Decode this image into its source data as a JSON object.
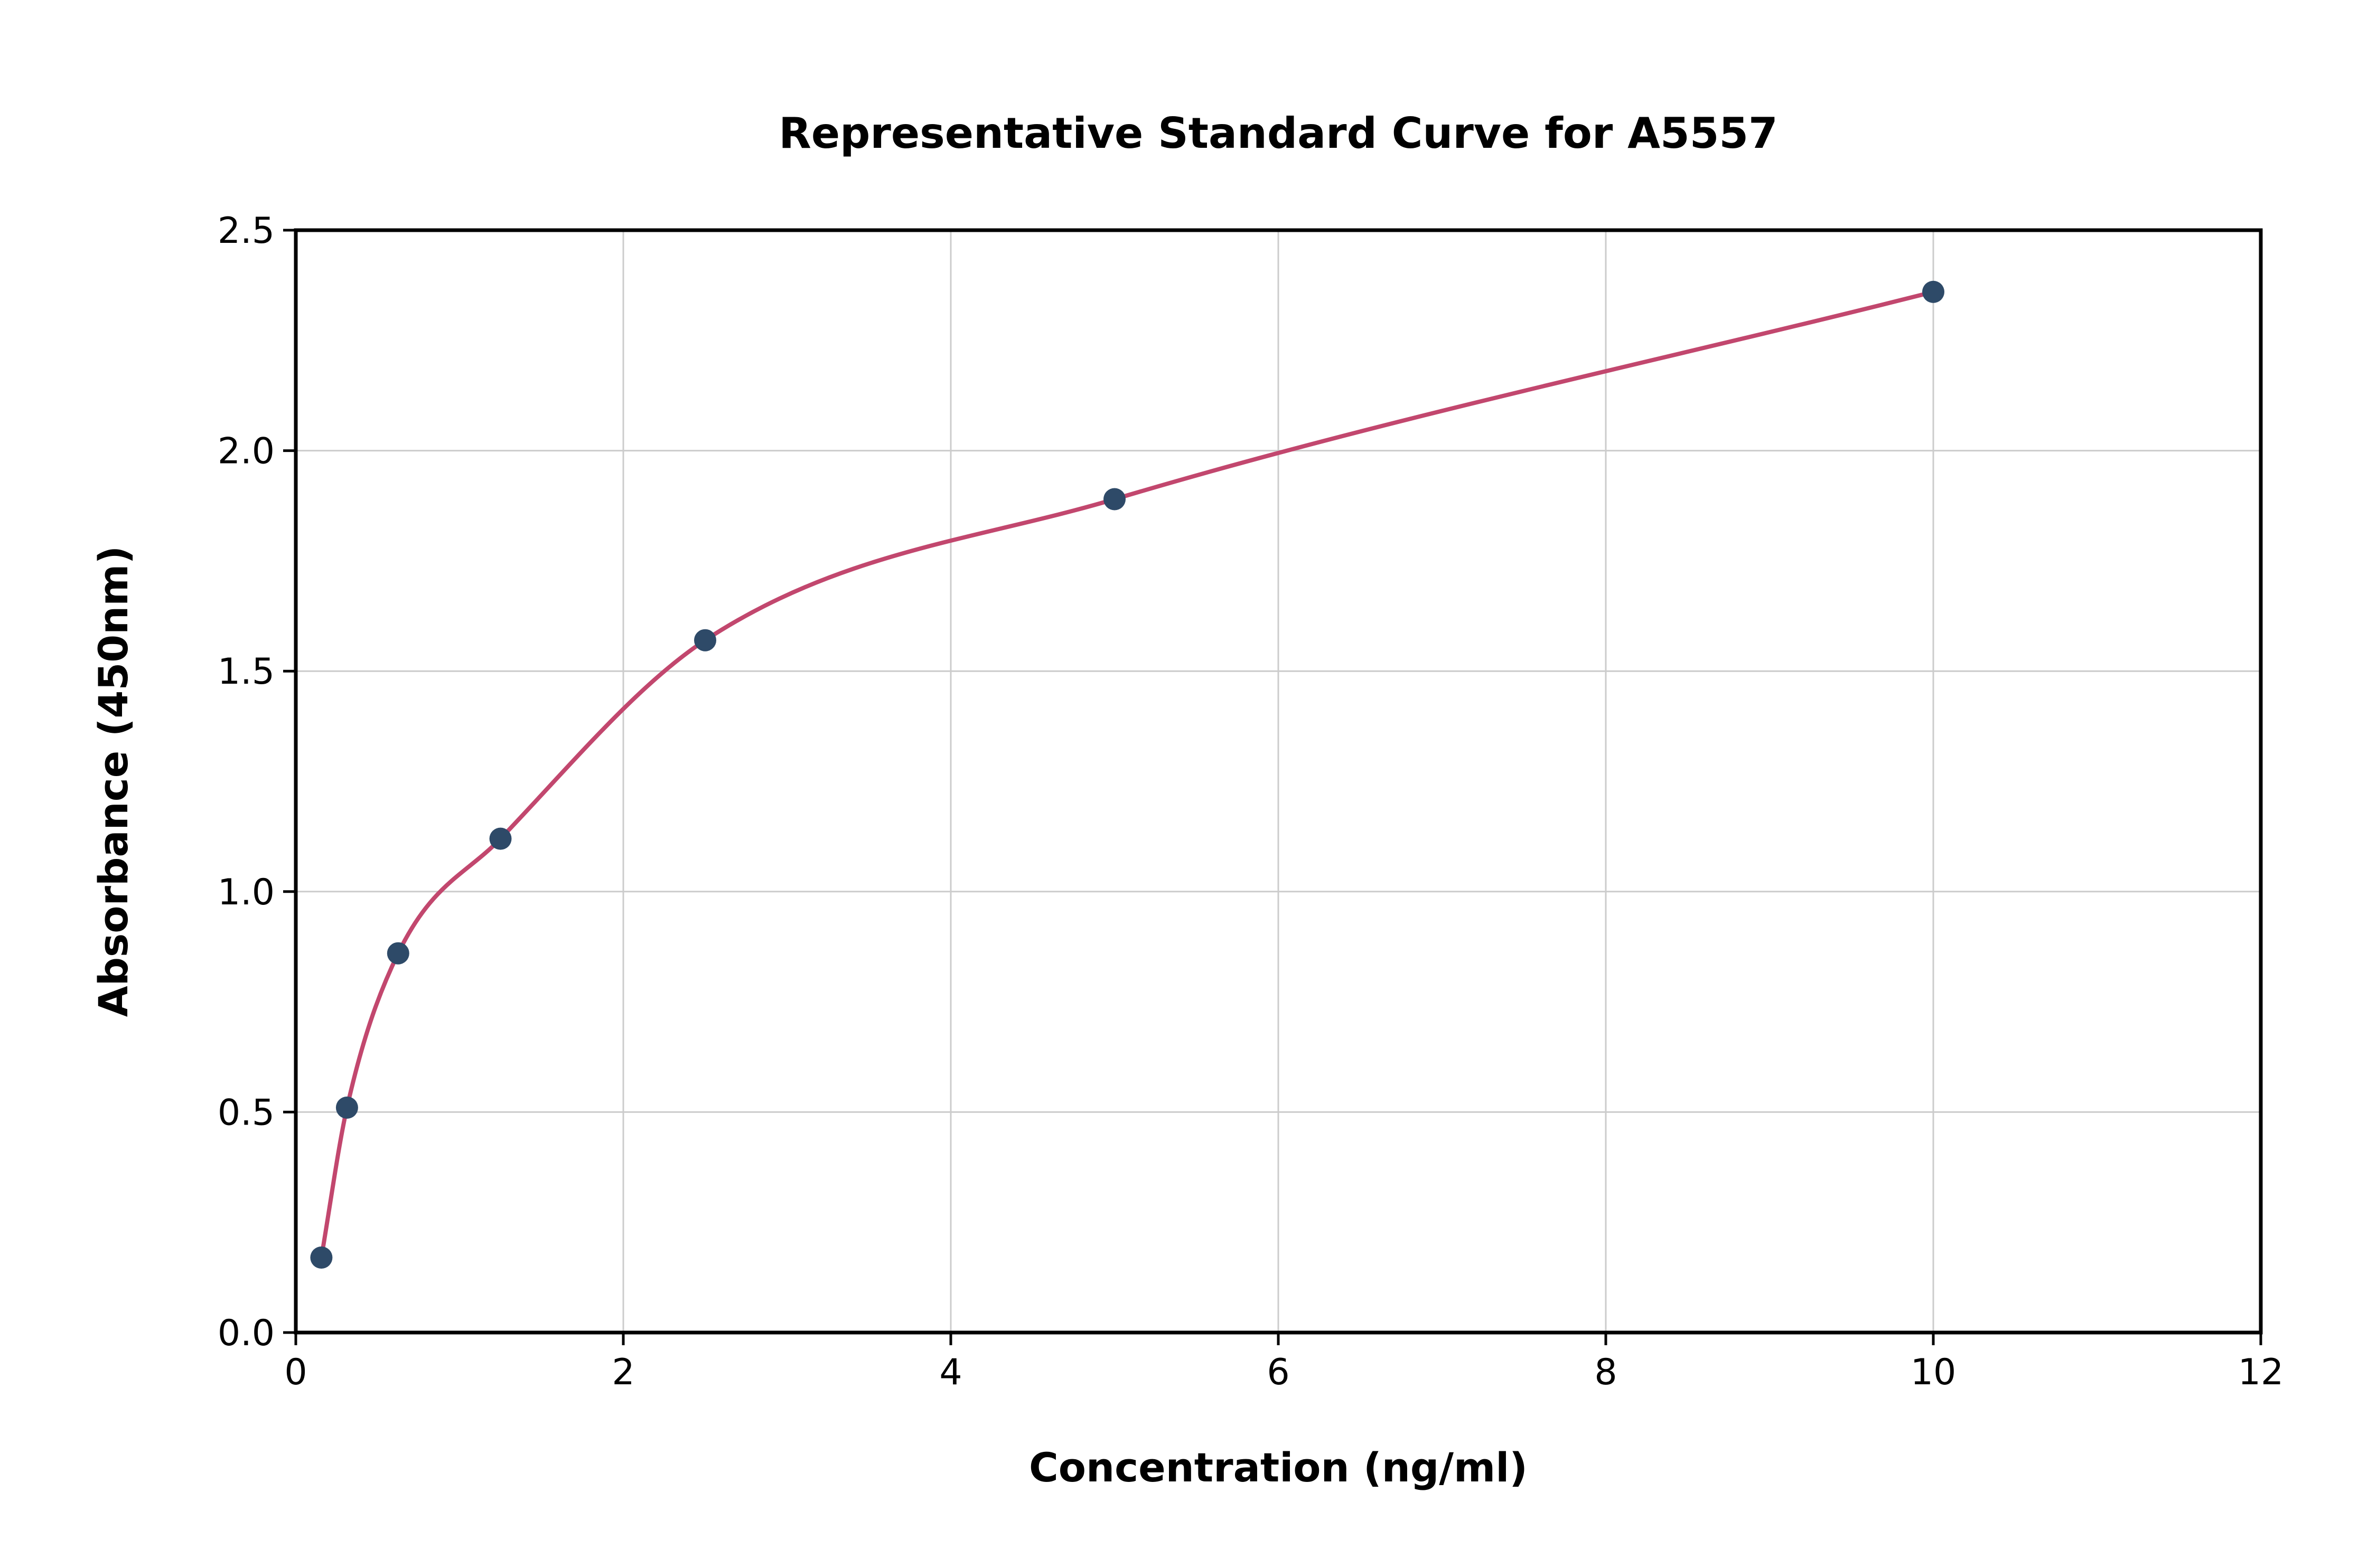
{
  "chart_data": {
    "type": "scatter",
    "title": "Representative Standard Curve for A5557",
    "xlabel": "Concentration (ng/ml)",
    "ylabel": "Absorbance (450nm)",
    "xlim": [
      0,
      12
    ],
    "ylim": [
      0,
      2.5
    ],
    "grid": true,
    "legend": "none",
    "x_ticks": [
      {
        "v": 0,
        "label": "0"
      },
      {
        "v": 2,
        "label": "2"
      },
      {
        "v": 4,
        "label": "4"
      },
      {
        "v": 6,
        "label": "6"
      },
      {
        "v": 8,
        "label": "8"
      },
      {
        "v": 10,
        "label": "10"
      },
      {
        "v": 12,
        "label": "12"
      }
    ],
    "y_ticks": [
      {
        "v": 0.0,
        "label": "0.0"
      },
      {
        "v": 0.5,
        "label": "0.5"
      },
      {
        "v": 1.0,
        "label": "1.0"
      },
      {
        "v": 1.5,
        "label": "1.5"
      },
      {
        "v": 2.0,
        "label": "2.0"
      },
      {
        "v": 2.5,
        "label": "2.5"
      }
    ],
    "points": {
      "x": [
        0.156,
        0.3125,
        0.625,
        1.25,
        2.5,
        5,
        10
      ],
      "y": [
        0.17,
        0.51,
        0.86,
        1.12,
        1.57,
        1.89,
        2.36
      ]
    },
    "fit_curve": "smooth curve through standard points",
    "colors": {
      "curve": "#c2476e",
      "point": "#2e4a68",
      "grid": "#cccccc",
      "frame": "#000000",
      "text": "#000000"
    }
  }
}
